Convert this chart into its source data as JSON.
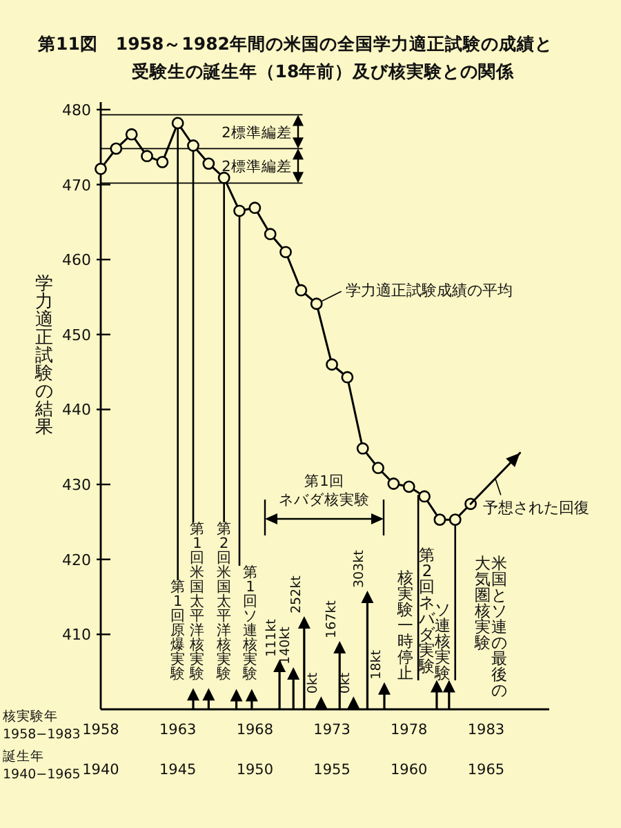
{
  "chart_data": {
    "type": "line",
    "title": "第11図　1958～1982年間の米国の全国学力適正試験の成績と",
    "subtitle": "受験生の誕生年（18年前）及び核実験との関係",
    "xlabel": "核実験年\n1958−1983",
    "x2label": "誕生年\n1940−1965",
    "ylabel": "学力適正試験の結果",
    "xlim": [
      1958,
      1987.1
    ],
    "xticks": [
      1958,
      1963,
      1968,
      1973,
      1978,
      1983
    ],
    "x2lim": [
      1940,
      1969.1
    ],
    "x2ticks": [
      1940,
      1945,
      1950,
      1955,
      1960,
      1965
    ],
    "ylim": [
      400,
      481
    ],
    "yticks": [
      410,
      420,
      430,
      440,
      450,
      460,
      470,
      480
    ],
    "marker": "circle",
    "series": [
      {
        "name": "学力適正試験成績の平均",
        "color": "#000000",
        "x": [
          1958,
          1959,
          1960,
          1961,
          1962,
          1963,
          1964,
          1965,
          1966,
          1967,
          1968,
          1969,
          1970,
          1971,
          1972,
          1973,
          1974,
          1975,
          1976,
          1977,
          1978,
          1979,
          1980,
          1981,
          1982
        ],
        "values": [
          472.1,
          474.8,
          476.7,
          473.8,
          473.0,
          478.2,
          475.2,
          472.8,
          470.9,
          466.5,
          466.9,
          463.4,
          461.0,
          455.9,
          454.1,
          446.0,
          444.3,
          434.8,
          432.2,
          430.1,
          429.7,
          428.4,
          425.3,
          425.3,
          427.4
        ]
      },
      {
        "name": "予想された回復",
        "color": "#000000",
        "marker": "none",
        "x": [
          1982,
          1985.2
        ],
        "values": [
          427.4,
          434.2
        ]
      },
      {
        "type": "lollipop",
        "marker": "triangle",
        "color": "#000000",
        "x": [
          1964.0,
          1965.0,
          1966.8,
          1967.8,
          1969.6,
          1970.5,
          1971.2,
          1972.3,
          1973.5,
          1974.4,
          1975.3,
          1976.4,
          1979.8,
          1980.6
        ],
        "values": [
          401.9,
          401.9,
          401.8,
          401.8,
          405.7,
          404.7,
          411.5,
          400.8,
          408.2,
          400.8,
          414.9,
          402.7,
          403.0,
          403.0
        ]
      }
    ],
    "ref_lines": [
      {
        "axis": "y",
        "value": 479.3
      },
      {
        "axis": "y",
        "value": 474.8
      },
      {
        "axis": "y",
        "value": 470.2
      }
    ],
    "annotations": [
      "2標準編差",
      "2標準編差",
      "第1回",
      "ネバダ核実験",
      "第2回ネバダ実験",
      "米国とソ連の最後の",
      "大気圏核実験",
      "第1回原爆実験",
      "第1回米国太平洋核実験",
      "第2回米国太平洋核実験",
      {
        "text": "第1回ソ連核実験",
        "x": 1967,
        "y": 466.5
      },
      {
        "text": "核実験一時停止",
        "x": 1978.6,
        "y": 428.6
      },
      {
        "text": "ソ連核実験",
        "x": 1981,
        "y": 425.3
      },
      {
        "text": "111kt",
        "x": 1969.6,
        "y": 405.7
      },
      {
        "text": "140kt",
        "x": 1970.5,
        "y": 404.7
      },
      {
        "text": "252kt",
        "x": 1971.2,
        "y": 411.5
      },
      {
        "text": "0kt",
        "x": 1972.3,
        "y": 400.8
      },
      {
        "text": "167kt",
        "x": 1973.5,
        "y": 408.2
      },
      {
        "text": "0kt",
        "x": 1974.4,
        "y": 400.8
      },
      {
        "text": "303kt",
        "x": 1975.3,
        "y": 414.9
      },
      {
        "text": "18kt",
        "x": 1976.4,
        "y": 402.7
      }
    ]
  }
}
